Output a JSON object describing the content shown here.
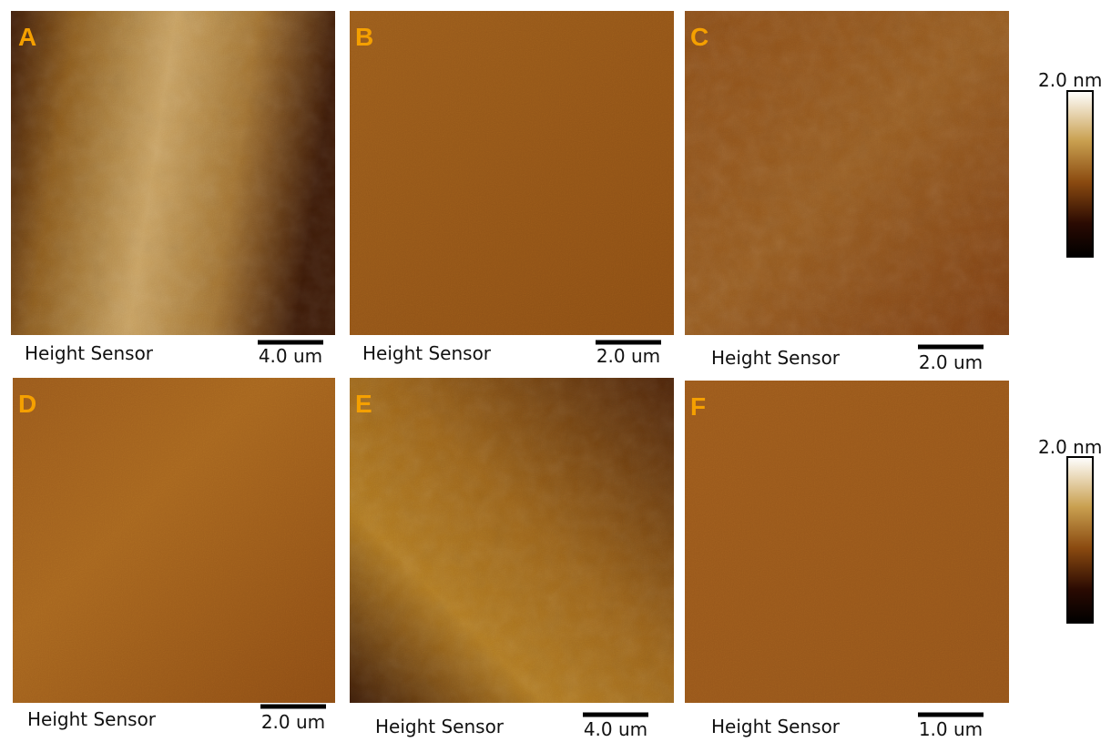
{
  "panels": [
    {
      "label": "A",
      "caption": "Height Sensor",
      "scale_bar": "4.0 um"
    },
    {
      "label": "B",
      "caption": "Height Sensor",
      "scale_bar": "2.0 um"
    },
    {
      "label": "C",
      "caption": "Height Sensor",
      "scale_bar": "2.0 um"
    },
    {
      "label": "D",
      "caption": "Height Sensor",
      "scale_bar": "2.0 um"
    },
    {
      "label": "E",
      "caption": "Height Sensor",
      "scale_bar": "4.0 um"
    },
    {
      "label": "F",
      "caption": "Height Sensor",
      "scale_bar": "1.0 um"
    }
  ],
  "colorbars": [
    {
      "label": "2.0 nm"
    },
    {
      "label": "2.0 nm"
    }
  ]
}
